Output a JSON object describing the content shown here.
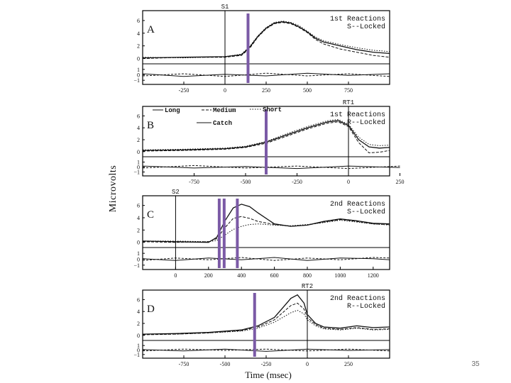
{
  "slide_number": "35",
  "figure": {
    "ylabel": "Microvolts",
    "xlabel": "Time (msec)",
    "marker_color": "#7b5aa6",
    "legend": {
      "items": [
        "Long",
        "Medium",
        "Short",
        "Catch"
      ]
    }
  },
  "chart_data": [
    {
      "type": "line",
      "panel": "A",
      "title": "1st Reactions S-Locked",
      "title_line1": "1st Reactions",
      "title_line2": "S--Locked",
      "event_label": "S1",
      "event_x": 0,
      "xlim": [
        -500,
        1000
      ],
      "xticks": [
        -250,
        0,
        250,
        500,
        750
      ],
      "xtick_labels": [
        "-250",
        "0",
        "250",
        "500",
        "750"
      ],
      "upper_ylim": [
        -0.5,
        7
      ],
      "upper_yticks": [
        0,
        2,
        4,
        6
      ],
      "lower_ylim": [
        -1.5,
        1.5
      ],
      "lower_yticks": [
        -1,
        0,
        1
      ],
      "upper_series": [
        {
          "x": [
            -500,
            -250,
            0,
            100,
            150,
            200,
            250,
            300,
            350,
            400,
            450,
            500,
            550,
            600,
            700,
            800,
            900,
            1000
          ],
          "y": [
            0.1,
            0.2,
            0.3,
            0.6,
            1.8,
            3.5,
            4.8,
            5.6,
            5.8,
            5.6,
            5.0,
            4.2,
            3.2,
            2.6,
            2.0,
            1.4,
            1.0,
            0.8
          ]
        },
        {
          "x": [
            -500,
            -250,
            0,
            100,
            150,
            200,
            250,
            300,
            350,
            400,
            450,
            500,
            550,
            600,
            700,
            800,
            900,
            1000
          ],
          "y": [
            0.0,
            0.2,
            0.2,
            0.5,
            1.6,
            3.4,
            4.7,
            5.5,
            5.7,
            5.5,
            4.9,
            4.1,
            3.0,
            2.3,
            1.5,
            1.0,
            0.5,
            0.2
          ]
        },
        {
          "x": [
            -500,
            -250,
            0,
            100,
            150,
            200,
            250,
            300,
            350,
            400,
            450,
            500,
            550,
            600,
            700,
            800,
            900,
            1000
          ],
          "y": [
            0.2,
            0.1,
            0.3,
            0.7,
            1.9,
            3.6,
            4.9,
            5.7,
            5.9,
            5.7,
            5.2,
            4.3,
            3.4,
            2.8,
            2.2,
            1.7,
            1.3,
            1.1
          ]
        }
      ],
      "lower_series": [
        {
          "x": [
            -500,
            -250,
            0,
            250,
            500,
            750,
            1000
          ],
          "y": [
            0.2,
            -0.3,
            0.1,
            -0.2,
            0.3,
            -0.1,
            0.2
          ]
        },
        {
          "x": [
            -500,
            -250,
            0,
            250,
            500,
            750,
            1000
          ],
          "y": [
            -0.2,
            0.2,
            -0.3,
            0.3,
            -0.2,
            0.2,
            -0.3
          ]
        }
      ],
      "marker_x": [
        140
      ]
    },
    {
      "type": "line",
      "panel": "B",
      "title": "1st Reactions R-Locked",
      "title_line1": "1st Reactions",
      "title_line2": "R--Locked",
      "event_label": "RT1",
      "event_x": 0,
      "xlim": [
        -1000,
        200
      ],
      "xticks": [
        -750,
        -500,
        -250,
        0,
        250
      ],
      "xtick_labels": [
        "-750",
        "-500",
        "-250",
        "0",
        "250"
      ],
      "upper_ylim": [
        -0.5,
        7
      ],
      "upper_yticks": [
        0,
        2,
        4,
        6
      ],
      "lower_ylim": [
        -1.5,
        1.5
      ],
      "lower_yticks": [
        -1,
        0,
        1
      ],
      "upper_series": [
        {
          "x": [
            -1000,
            -800,
            -600,
            -500,
            -400,
            -300,
            -200,
            -100,
            -50,
            0,
            50,
            100,
            150,
            200
          ],
          "y": [
            0.2,
            0.3,
            0.5,
            0.8,
            1.6,
            2.8,
            4.0,
            5.0,
            5.2,
            4.4,
            2.0,
            0.8,
            0.6,
            0.7
          ]
        },
        {
          "x": [
            -1000,
            -800,
            -600,
            -500,
            -400,
            -300,
            -200,
            -100,
            -50,
            0,
            50,
            100,
            150,
            200
          ],
          "y": [
            0.1,
            0.2,
            0.4,
            0.7,
            1.4,
            2.6,
            3.8,
            4.8,
            5.0,
            4.2,
            1.5,
            -0.2,
            -0.1,
            0.2
          ]
        },
        {
          "x": [
            -1000,
            -800,
            -600,
            -500,
            -400,
            -300,
            -200,
            -100,
            -50,
            0,
            50,
            100,
            150,
            200
          ],
          "y": [
            0.3,
            0.4,
            0.6,
            0.9,
            1.7,
            3.0,
            4.2,
            5.2,
            5.4,
            4.6,
            2.4,
            1.2,
            1.0,
            1.1
          ]
        }
      ],
      "lower_series": [
        {
          "x": [
            -1000,
            -750,
            -500,
            -250,
            0,
            250
          ],
          "y": [
            0.2,
            -0.2,
            0.1,
            -0.3,
            0.2,
            -0.1
          ]
        },
        {
          "x": [
            -1000,
            -750,
            -500,
            -250,
            0,
            250
          ],
          "y": [
            -0.2,
            0.3,
            -0.2,
            0.2,
            -0.3,
            0.2
          ]
        }
      ],
      "marker_x": [
        -400
      ]
    },
    {
      "type": "line",
      "panel": "C",
      "title": "2nd Reactions S-Locked",
      "title_line1": "2nd Reactions",
      "title_line2": "S--Locked",
      "event_label": "S2",
      "event_x": 0,
      "xlim": [
        -200,
        1300
      ],
      "xticks": [
        0,
        200,
        400,
        600,
        800,
        1000,
        1200
      ],
      "xtick_labels": [
        "0",
        "200",
        "400",
        "600",
        "800",
        "1000",
        "1200"
      ],
      "upper_ylim": [
        -0.5,
        7
      ],
      "upper_yticks": [
        0,
        2,
        4,
        6
      ],
      "lower_ylim": [
        -1.5,
        1.5
      ],
      "lower_yticks": [
        -1,
        0,
        1
      ],
      "upper_series": [
        {
          "x": [
            -200,
            0,
            200,
            250,
            300,
            350,
            400,
            450,
            500,
            600,
            700,
            800,
            900,
            1000,
            1100,
            1200,
            1300
          ],
          "y": [
            0.2,
            0.1,
            0.0,
            0.8,
            3.5,
            5.6,
            6.2,
            5.8,
            4.8,
            3.0,
            2.6,
            2.8,
            3.4,
            3.8,
            3.5,
            3.1,
            3.0
          ]
        },
        {
          "x": [
            -200,
            0,
            200,
            250,
            300,
            350,
            400,
            450,
            500,
            600,
            700,
            800,
            900,
            1000,
            1100,
            1200,
            1300
          ],
          "y": [
            0.1,
            0.0,
            0.1,
            0.6,
            2.4,
            3.9,
            4.2,
            3.9,
            3.4,
            2.9,
            2.6,
            2.8,
            3.3,
            3.7,
            3.4,
            3.0,
            2.9
          ]
        },
        {
          "x": [
            -200,
            0,
            200,
            250,
            300,
            350,
            400,
            450,
            500,
            600,
            700,
            800,
            900,
            1000,
            1100,
            1200,
            1300
          ],
          "y": [
            0.2,
            0.2,
            0.1,
            0.3,
            1.2,
            2.1,
            2.6,
            2.9,
            3.0,
            2.8,
            2.7,
            2.9,
            3.2,
            3.6,
            3.3,
            3.0,
            2.8
          ]
        }
      ],
      "lower_series": [
        {
          "x": [
            -200,
            0,
            200,
            400,
            600,
            800,
            1000,
            1200,
            1300
          ],
          "y": [
            0.1,
            -0.2,
            0.2,
            -0.1,
            0.3,
            -0.2,
            0.2,
            0.1,
            -0.1
          ]
        },
        {
          "x": [
            -200,
            0,
            200,
            400,
            600,
            800,
            1000,
            1200,
            1300
          ],
          "y": [
            -0.2,
            0.2,
            -0.1,
            0.3,
            -0.2,
            0.2,
            -0.1,
            0.3,
            0.2
          ]
        }
      ],
      "marker_x": [
        265,
        295,
        375
      ]
    },
    {
      "type": "line",
      "panel": "D",
      "title": "2nd Reactions R-Locked",
      "title_line1": "2nd Reactions",
      "title_line2": "R--Locked",
      "event_label": "RT2",
      "event_x": 0,
      "xlim": [
        -1000,
        500
      ],
      "xticks": [
        -750,
        -500,
        -250,
        0,
        250
      ],
      "xtick_labels": [
        "-750",
        "-500",
        "-250",
        "0",
        "250"
      ],
      "upper_ylim": [
        -0.5,
        7
      ],
      "upper_yticks": [
        0,
        2,
        4,
        6
      ],
      "lower_ylim": [
        -1.5,
        1.5
      ],
      "lower_yticks": [
        -1,
        0,
        1
      ],
      "upper_series": [
        {
          "x": [
            -1000,
            -800,
            -600,
            -400,
            -300,
            -200,
            -150,
            -100,
            -60,
            -20,
            0,
            50,
            100,
            200,
            300,
            400,
            500
          ],
          "y": [
            0.2,
            0.3,
            0.5,
            0.9,
            1.6,
            3.0,
            4.6,
            6.2,
            6.8,
            5.4,
            3.5,
            2.0,
            1.4,
            1.2,
            1.6,
            1.3,
            1.4
          ]
        },
        {
          "x": [
            -1000,
            -800,
            -600,
            -400,
            -300,
            -200,
            -150,
            -100,
            -60,
            -20,
            0,
            50,
            100,
            200,
            300,
            400,
            500
          ],
          "y": [
            0.1,
            0.2,
            0.4,
            0.8,
            1.4,
            2.6,
            3.8,
            5.0,
            5.4,
            4.4,
            3.0,
            1.8,
            1.2,
            1.0,
            1.3,
            1.0,
            1.1
          ]
        },
        {
          "x": [
            -1000,
            -800,
            -600,
            -400,
            -300,
            -200,
            -150,
            -100,
            -60,
            -20,
            0,
            50,
            100,
            200,
            300,
            400,
            500
          ],
          "y": [
            0.2,
            0.2,
            0.4,
            0.7,
            1.2,
            2.2,
            3.0,
            3.8,
            4.2,
            3.6,
            2.6,
            1.6,
            1.1,
            0.9,
            1.2,
            0.9,
            1.0
          ]
        }
      ],
      "lower_series": [
        {
          "x": [
            -1000,
            -750,
            -500,
            -250,
            0,
            250,
            500
          ],
          "y": [
            0.1,
            -0.2,
            0.2,
            -0.3,
            0.2,
            -0.1,
            0.1
          ]
        },
        {
          "x": [
            -1000,
            -750,
            -500,
            -250,
            0,
            250,
            500
          ],
          "y": [
            -0.2,
            0.2,
            -0.1,
            0.2,
            -0.2,
            0.2,
            -0.2
          ]
        }
      ],
      "marker_x": [
        -320
      ]
    }
  ]
}
